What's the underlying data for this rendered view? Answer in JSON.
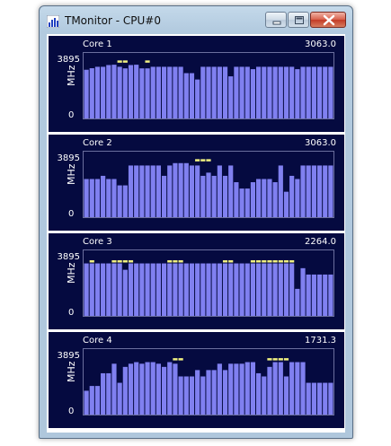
{
  "window": {
    "title": "TMonitor - CPU#0",
    "icon": "bar-chart-app-icon",
    "buttons": [
      "minimize-button",
      "maximize-button",
      "close-button"
    ]
  },
  "colors": {
    "panel_bg": "#050a40",
    "bar": "#8080f0",
    "peak": "#f0f080",
    "text": "#ffffff"
  },
  "cores": [
    {
      "label": "Core 1",
      "current_value": "3063.0",
      "y_max_label": "3895",
      "y_zero_label": "0",
      "y_unit": "MHz",
      "chart_data": {
        "type": "bar",
        "ylim": [
          0,
          3895
        ],
        "values": [
          3063,
          3160,
          3250,
          3250,
          3360,
          3380,
          3250,
          3150,
          3360,
          3380,
          3150,
          3150,
          3250,
          3250,
          3250,
          3250,
          3250,
          3250,
          2850,
          2850,
          2450,
          3250,
          3250,
          3250,
          3250,
          3250,
          2650,
          3250,
          3250,
          3250,
          3100,
          3250,
          3250,
          3250,
          3250,
          3250,
          3250,
          3250,
          3100,
          3250,
          3250,
          3250,
          3250,
          3250,
          3250
        ],
        "peaks": [
          3650,
          3650,
          3650,
          null,
          3650,
          3650
        ]
      }
    },
    {
      "label": "Core 2",
      "current_value": "3063.0",
      "y_max_label": "3895",
      "y_zero_label": "0",
      "y_unit": "MHz",
      "chart_data": {
        "type": "bar",
        "ylim": [
          0,
          3895
        ],
        "values": [
          2400,
          2400,
          2400,
          2600,
          2400,
          2400,
          2000,
          2000,
          3250,
          3250,
          3250,
          3250,
          3250,
          3250,
          2600,
          3250,
          3400,
          3400,
          3400,
          3250,
          3250,
          2600,
          2800,
          2600,
          3250,
          2600,
          3250,
          2200,
          1800,
          1800,
          2200,
          2400,
          2400,
          2400,
          2200,
          3250,
          1600,
          2600,
          2400,
          3250,
          3250,
          3250,
          3250,
          3250,
          3250
        ],
        "peaks": [
          3650,
          3650,
          3650
        ]
      }
    },
    {
      "label": "Core 3",
      "current_value": "2264.0",
      "y_max_label": "3895",
      "y_zero_label": "0",
      "y_unit": "MHz",
      "chart_data": {
        "type": "bar",
        "ylim": [
          0,
          3895
        ],
        "values": [
          3300,
          3300,
          3300,
          3300,
          3300,
          3300,
          3300,
          2900,
          3300,
          3300,
          3300,
          3300,
          3300,
          3300,
          3300,
          3300,
          3300,
          3300,
          3300,
          3300,
          3300,
          3300,
          3300,
          3300,
          3300,
          3300,
          3300,
          3300,
          3300,
          3300,
          3300,
          3300,
          3300,
          3300,
          3300,
          3300,
          3300,
          3300,
          1700,
          3000,
          2600,
          2600,
          2600,
          2600,
          2600
        ],
        "peaks": [
          3500,
          3500,
          3500,
          3500,
          3500,
          3500,
          3500,
          3500,
          3500,
          3500,
          3500,
          3500,
          3500,
          3500,
          3500,
          3500,
          3500,
          3500
        ]
      }
    },
    {
      "label": "Core 4",
      "current_value": "1731.3",
      "y_max_label": "3895",
      "y_zero_label": "0",
      "y_unit": "MHz",
      "chart_data": {
        "type": "bar",
        "ylim": [
          0,
          3895
        ],
        "values": [
          1500,
          1800,
          1800,
          2600,
          2600,
          3200,
          2000,
          3000,
          3200,
          3300,
          3200,
          3300,
          3300,
          3200,
          3000,
          3300,
          3200,
          2400,
          2400,
          2400,
          2800,
          2400,
          2800,
          2800,
          3200,
          2800,
          3200,
          3200,
          3200,
          3300,
          3300,
          2600,
          2400,
          3000,
          3300,
          3300,
          2400,
          3300,
          3300,
          3300,
          2000,
          2000,
          2000,
          2000,
          2000
        ],
        "peaks": [
          3550,
          3550,
          3550,
          3550,
          3550,
          3550
        ]
      }
    }
  ]
}
